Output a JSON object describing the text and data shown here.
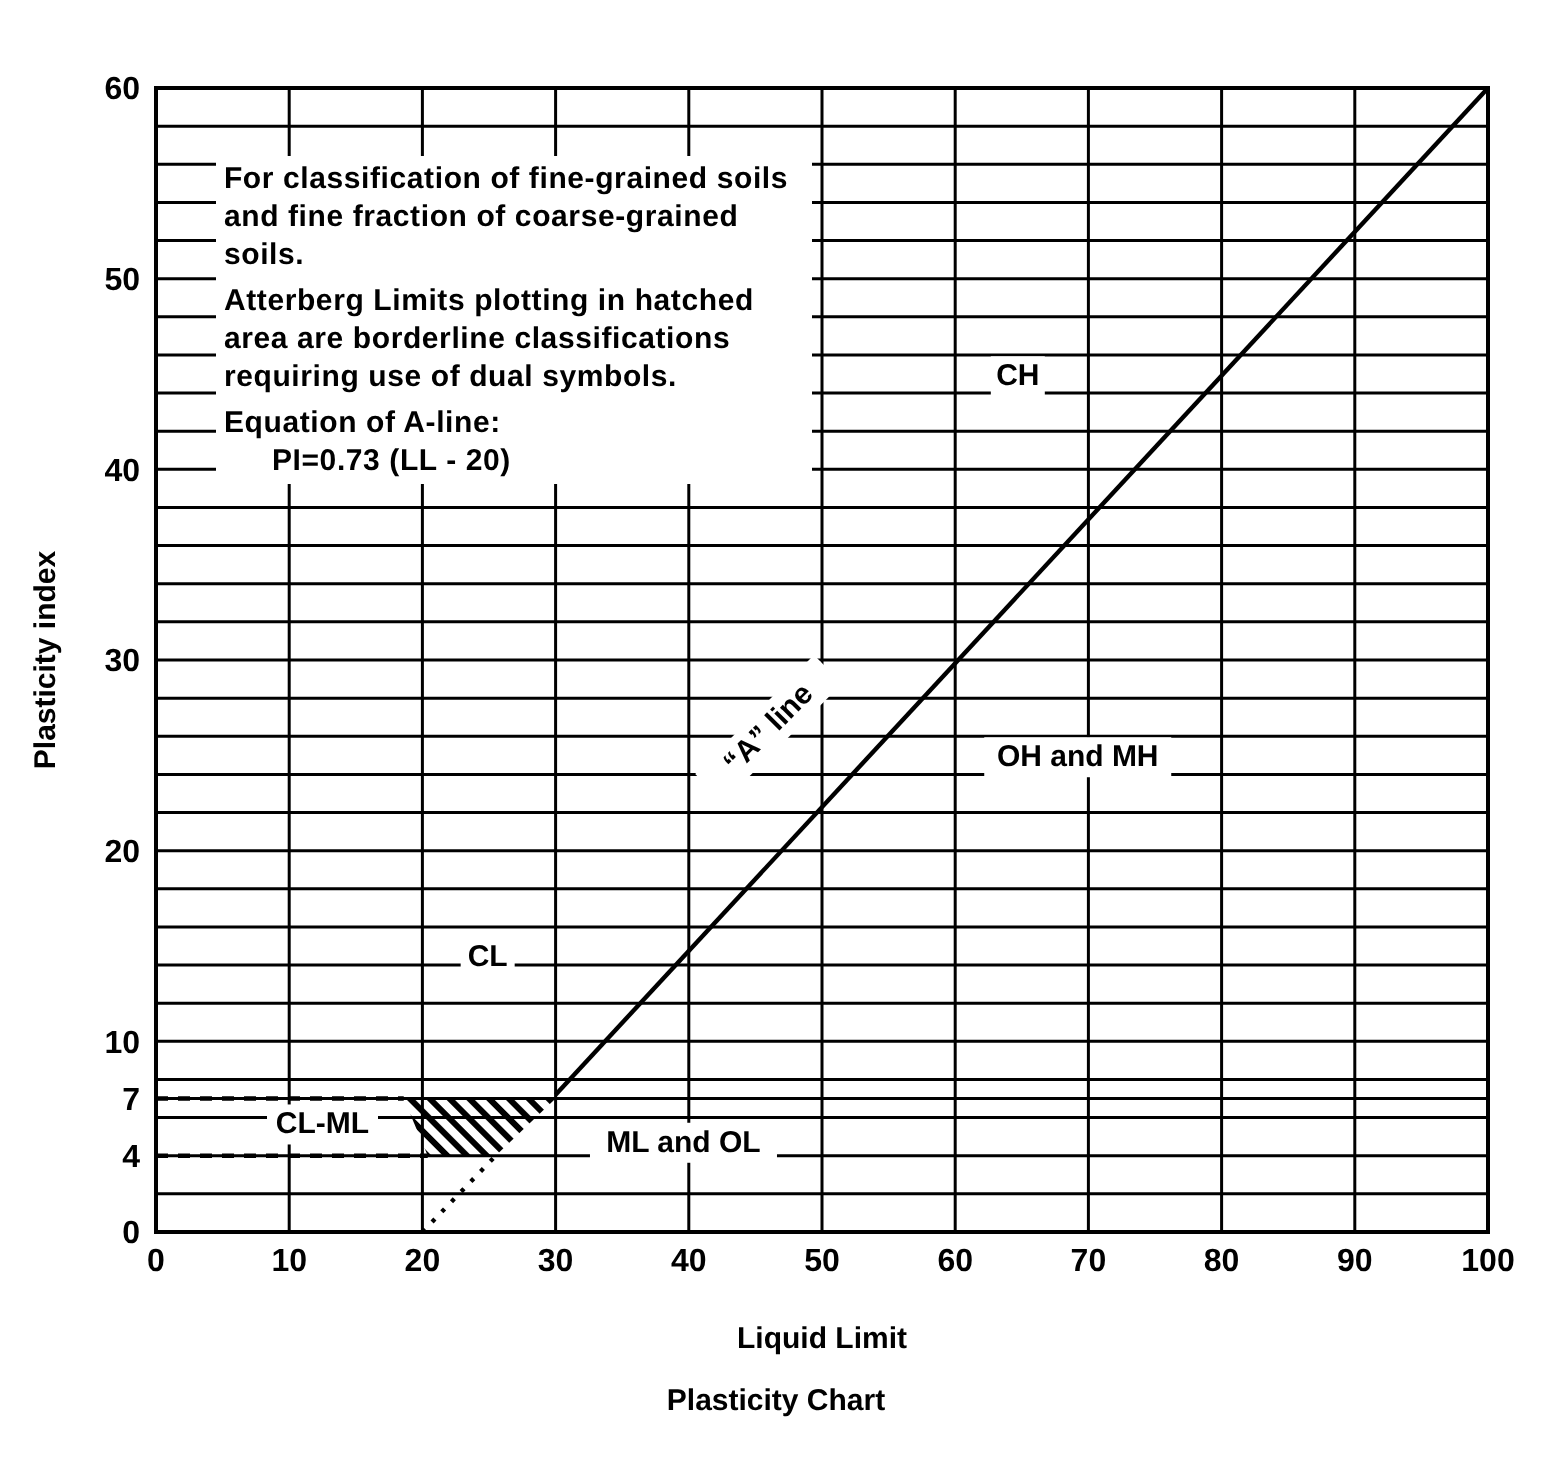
{
  "chart_data": {
    "type": "line",
    "title": "Plasticity Chart",
    "xlabel": "Liquid Limit",
    "ylabel": "Plasticity index",
    "xlim": [
      0,
      100
    ],
    "ylim": [
      0,
      60
    ],
    "xticks": [
      0,
      10,
      20,
      30,
      40,
      50,
      60,
      70,
      80,
      90,
      100
    ],
    "yticks": [
      0,
      {
        "value": 2,
        "label": null
      },
      4,
      {
        "value": 6,
        "label": null
      },
      7,
      {
        "value": 8,
        "label": null
      },
      10,
      {
        "value": 12,
        "label": null
      },
      {
        "value": 14,
        "label": null
      },
      {
        "value": 16,
        "label": null
      },
      {
        "value": 18,
        "label": null
      },
      20,
      {
        "value": 22,
        "label": null
      },
      {
        "value": 24,
        "label": null
      },
      {
        "value": 26,
        "label": null
      },
      {
        "value": 28,
        "label": null
      },
      30,
      {
        "value": 32,
        "label": null
      },
      {
        "value": 34,
        "label": null
      },
      {
        "value": 36,
        "label": null
      },
      {
        "value": 38,
        "label": null
      },
      40,
      {
        "value": 42,
        "label": null
      },
      {
        "value": 44,
        "label": null
      },
      {
        "value": 46,
        "label": null
      },
      {
        "value": 48,
        "label": null
      },
      50,
      {
        "value": 52,
        "label": null
      },
      {
        "value": 54,
        "label": null
      },
      {
        "value": 56,
        "label": null
      },
      {
        "value": 58,
        "label": null
      },
      60
    ],
    "grid": true,
    "marker": "none",
    "series": [
      {
        "x": [
          30,
          100
        ],
        "values": [
          7.2,
          60
        ],
        "color": "#000000",
        "line_style": "solid"
      },
      {
        "x": [
          20,
          25.5
        ],
        "values": [
          0,
          4
        ],
        "color": "#000000",
        "line_style": "dotted"
      },
      {
        "x": [
          0,
          20.4
        ],
        "values": [
          4,
          4
        ],
        "color": "#000000",
        "line_style": "dashed"
      },
      {
        "x": [
          0,
          18.6
        ],
        "values": [
          7,
          7
        ],
        "color": "#000000",
        "line_style": "dashed"
      }
    ],
    "annotations": [
      "For classification of fine-grained soils and fine fraction of coarse-grained soils.",
      "Atterberg Limits plotting in hatched area are borderline classifications requiring use of dual symbols.",
      "Equation of A-line:",
      "PI=0.73 (LL - 20)",
      "CH",
      "OH and MH",
      "“A” line",
      "CL",
      "CL-ML",
      "ML and OL"
    ]
  }
}
